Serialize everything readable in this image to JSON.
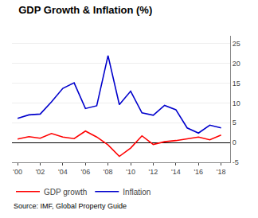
{
  "chart_data": {
    "type": "line",
    "title": "GDP Growth & Inflation (%)",
    "annotations": [
      "Source: IMF, Global Property Guide"
    ],
    "x": [
      2000,
      2001,
      2002,
      2003,
      2004,
      2005,
      2006,
      2007,
      2008,
      2009,
      2010,
      2011,
      2012,
      2013,
      2014,
      2015,
      2016,
      2017,
      2018
    ],
    "series": [
      {
        "name": "GDP growth",
        "color": "#ff0000",
        "values": [
          0.9,
          1.5,
          1.1,
          2.3,
          1.4,
          1.0,
          2.9,
          1.4,
          -0.6,
          -3.5,
          -1.4,
          1.7,
          -0.5,
          0.2,
          0.5,
          0.9,
          1.4,
          0.7,
          1.9
        ]
      },
      {
        "name": "Inflation",
        "color": "#0000cc",
        "values": [
          6.1,
          7.0,
          7.2,
          10.3,
          13.7,
          15.1,
          8.6,
          9.3,
          22.0,
          9.6,
          13.0,
          7.5,
          6.9,
          9.4,
          8.3,
          3.7,
          2.4,
          4.4,
          3.7
        ]
      }
    ],
    "xlim": [
      1999.5,
      2018.8
    ],
    "xticks": [
      {
        "value": 2000,
        "label": "'00"
      },
      {
        "value": 2002,
        "label": "'02"
      },
      {
        "value": 2004,
        "label": "'04"
      },
      {
        "value": 2006,
        "label": "'06"
      },
      {
        "value": 2008,
        "label": "'08"
      },
      {
        "value": 2010,
        "label": "'10"
      },
      {
        "value": 2012,
        "label": "'12"
      },
      {
        "value": 2014,
        "label": "'14"
      },
      {
        "value": 2016,
        "label": "'16"
      },
      {
        "value": 2018,
        "label": "'18"
      }
    ],
    "ylim": [
      -5,
      27
    ],
    "yticks": [
      -5,
      0,
      5,
      10,
      15,
      20,
      25
    ],
    "grid": "y",
    "legend": "bottom"
  }
}
